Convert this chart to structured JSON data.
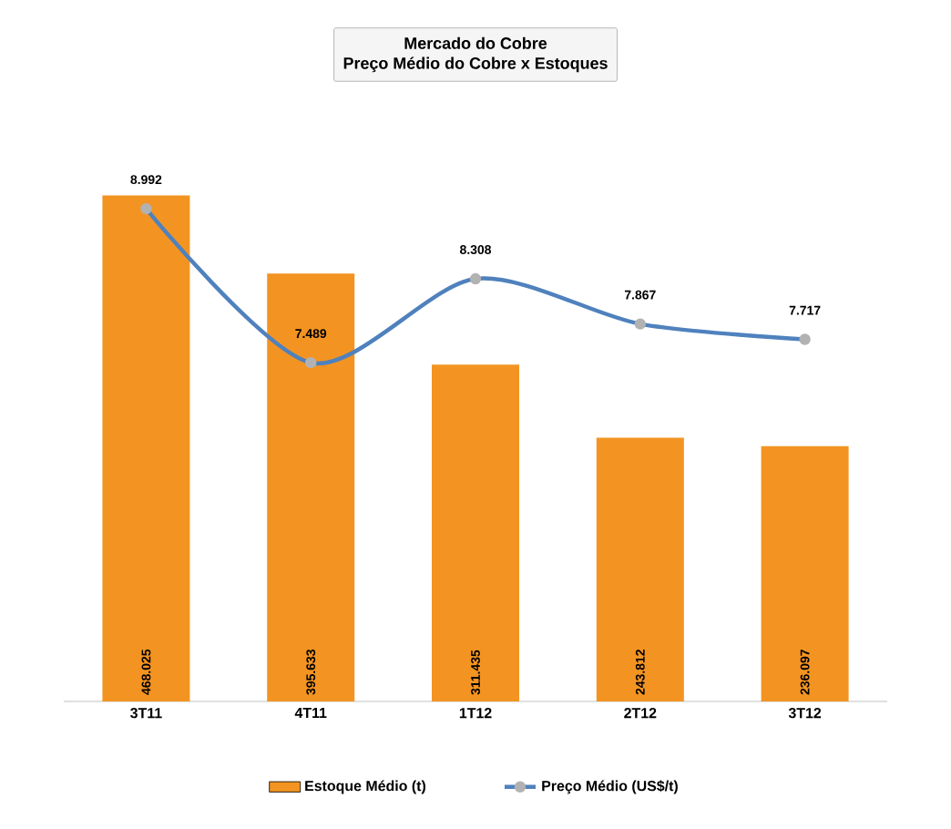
{
  "chart_data": {
    "type": "bar",
    "title": "Mercado do Cobre",
    "subtitle": "Preço Médio do Cobre x Estoques",
    "categories": [
      "3T11",
      "4T11",
      "1T12",
      "2T12",
      "3T12"
    ],
    "series": [
      {
        "name": "Estoque Médio (t)",
        "color": "#f39422",
        "values": [
          468025,
          395633,
          311435,
          243812,
          236097
        ],
        "value_labels": [
          "468.025",
          "395.633",
          "311.435",
          "243.812",
          "236.097"
        ]
      },
      {
        "name": "Preço Médio (US$/t)",
        "type": "line",
        "axis": "y2",
        "color": "#4f81bd",
        "marker": "circle",
        "values": [
          8992,
          7489,
          8308,
          7867,
          7717
        ],
        "value_labels": [
          "8.992",
          "7.489",
          "8.308",
          "7.867",
          "7.717"
        ]
      }
    ],
    "tick_labels": "x",
    "legend": "bottom"
  }
}
